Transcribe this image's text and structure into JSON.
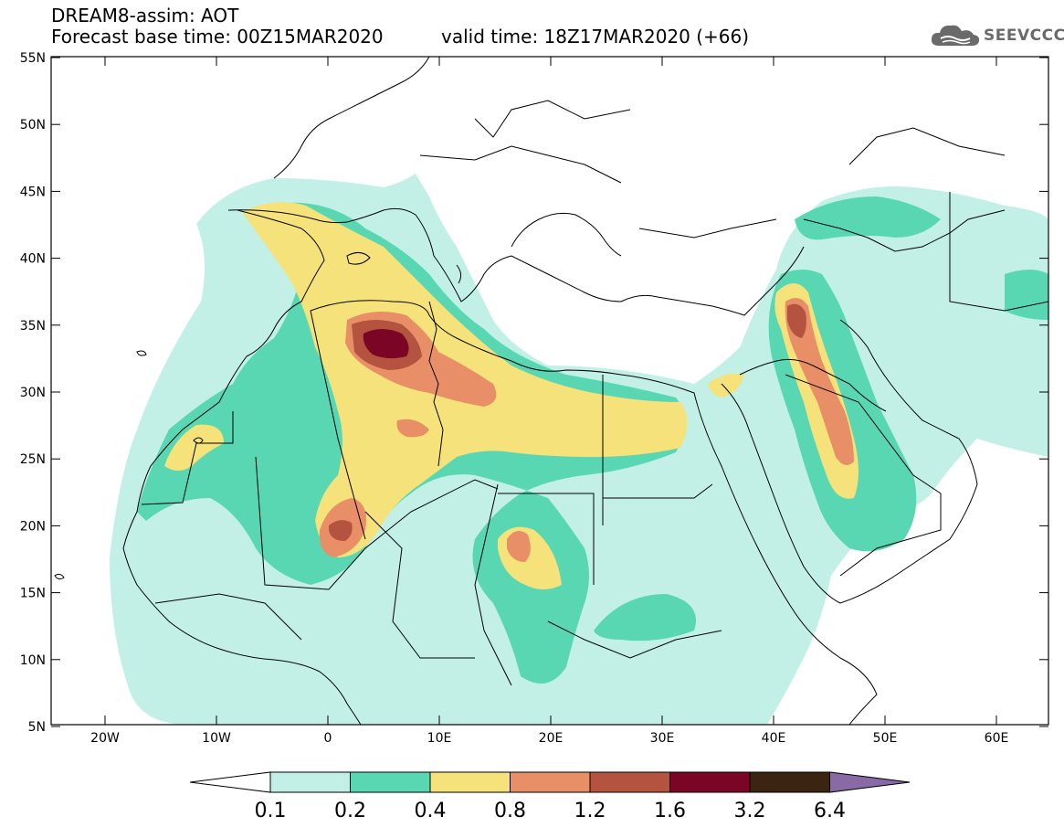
{
  "header": {
    "model_title": "DREAM8-assim: AOT",
    "base_time": "Forecast base time: 00Z15MAR2020",
    "valid_time": "valid time: 18Z17MAR2020 (+66)"
  },
  "logo": {
    "text": "SEEVCCC",
    "icon": "cloud-icon"
  },
  "map": {
    "lat_labels": [
      "55N",
      "50N",
      "45N",
      "40N",
      "35N",
      "30N",
      "25N",
      "20N",
      "15N",
      "10N",
      "5N"
    ],
    "lon_labels": [
      "20W",
      "10W",
      "0",
      "10E",
      "20E",
      "30E",
      "40E",
      "50E",
      "60E"
    ]
  },
  "colorbar": {
    "ticks": [
      "0.1",
      "0.2",
      "0.4",
      "0.8",
      "1.2",
      "1.6",
      "3.2",
      "6.4"
    ],
    "colors": [
      "#ffffff",
      "#c2f0e7",
      "#59d7b2",
      "#f5e27a",
      "#e98f68",
      "#b45440",
      "#7a0524",
      "#3b2412",
      "#8a6aa6"
    ]
  },
  "colors": {
    "c1": "#c2f0e7",
    "c2": "#59d7b2",
    "c3": "#f5e27a",
    "c4": "#e98f68",
    "c5": "#b45440",
    "c6": "#7a0524"
  }
}
